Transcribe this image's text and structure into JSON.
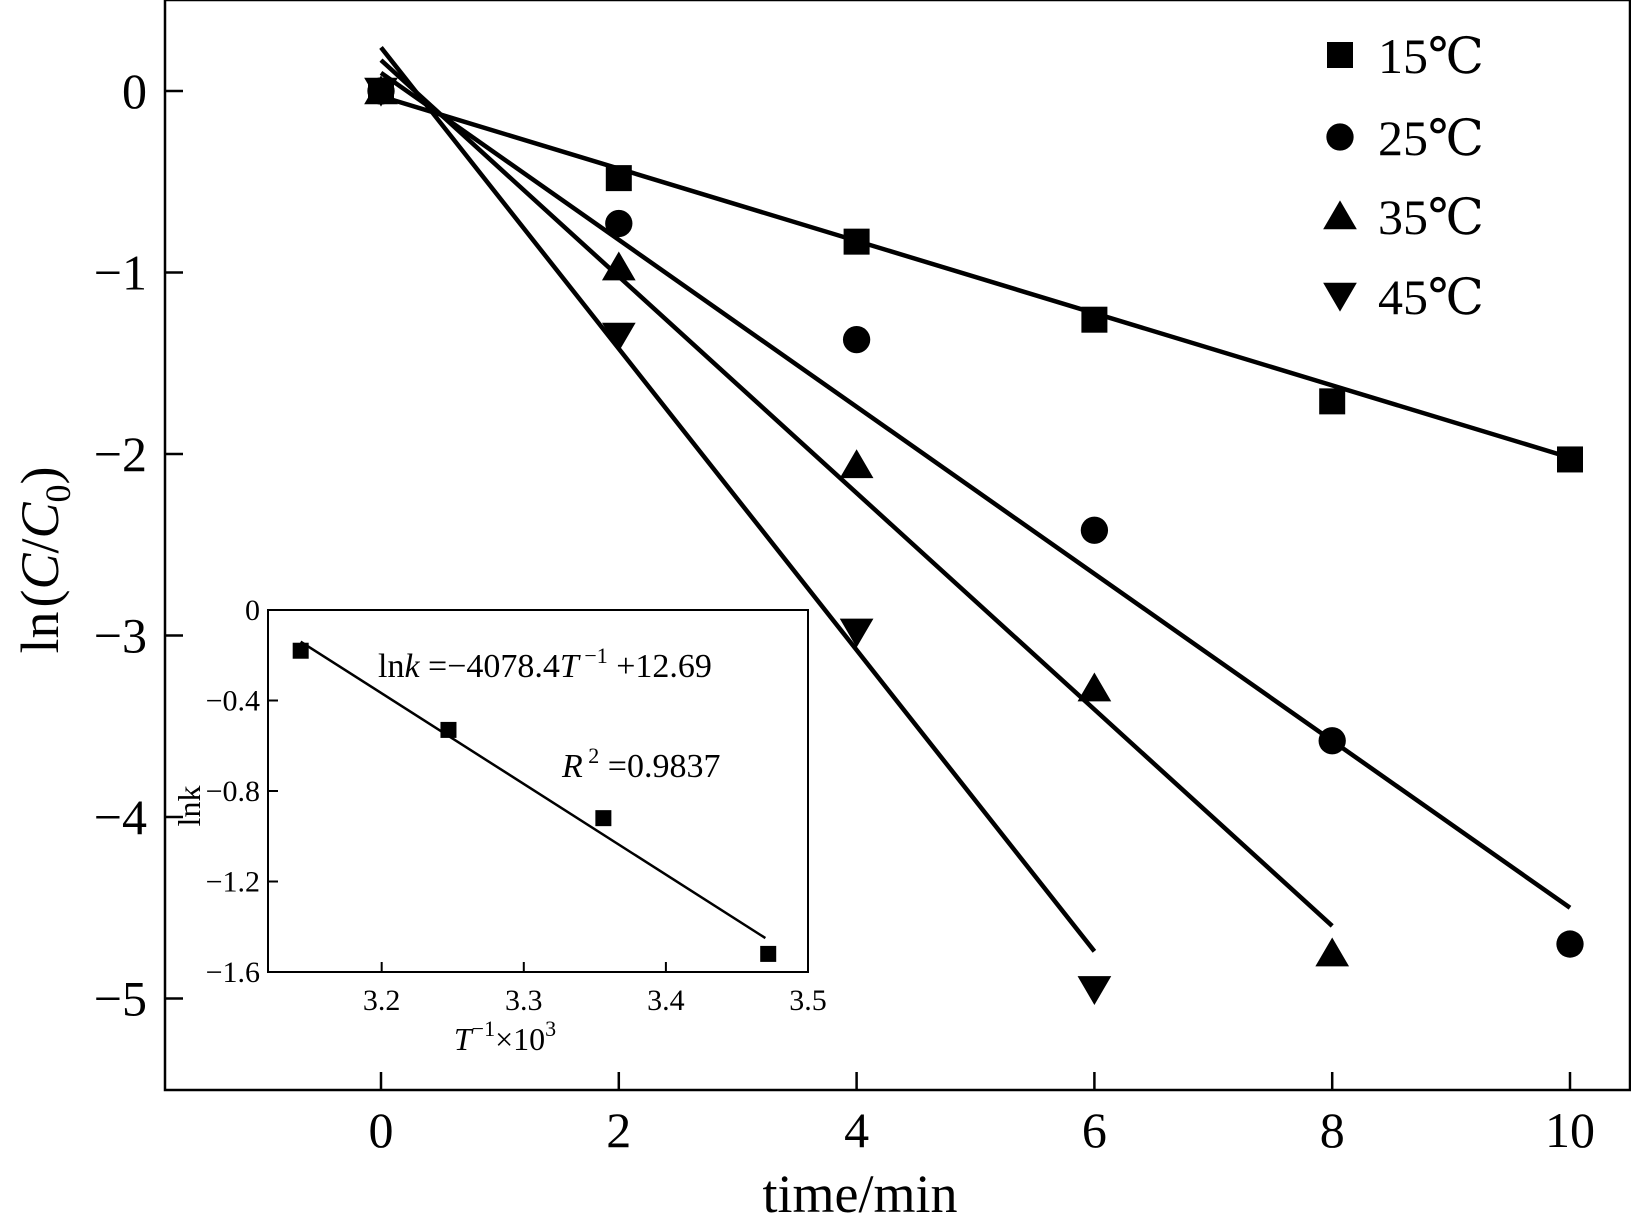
{
  "chart_data": [
    {
      "type": "scatter",
      "xlabel": "time/min",
      "ylabel": "ln(C/C0)",
      "ylabel_parts": {
        "prefix": "ln",
        "open": "(",
        "c": "C",
        "slash": "/",
        "c0": "C",
        "sub": "0",
        "close": ")"
      },
      "xlim": [
        -1.8,
        10.5
      ],
      "ylim": [
        -5.5,
        0.5
      ],
      "xticks": [
        0,
        2,
        4,
        6,
        8,
        10
      ],
      "yticks": [
        0,
        -1,
        -2,
        -3,
        -4,
        -5
      ],
      "xtick_labels": [
        "0",
        "2",
        "4",
        "6",
        "8",
        "10"
      ],
      "ytick_labels": [
        "0",
        "−1",
        "−2",
        "−3",
        "−4",
        "−5"
      ],
      "legend_position": "top-right",
      "grid": false,
      "series": [
        {
          "name": "15℃",
          "marker": "square",
          "x": [
            0,
            2,
            4,
            6,
            8,
            10
          ],
          "y": [
            0,
            -0.48,
            -0.83,
            -1.26,
            -1.71,
            -2.03
          ],
          "fit": [
            [
              0,
              -0.03
            ],
            [
              10,
              -2.02
            ]
          ]
        },
        {
          "name": "25℃",
          "marker": "circle",
          "x": [
            0,
            2,
            4,
            6,
            8,
            10
          ],
          "y": [
            0,
            -0.73,
            -1.37,
            -2.42,
            -3.58,
            -4.7
          ],
          "fit": [
            [
              0,
              0.1
            ],
            [
              10,
              -4.5
            ]
          ]
        },
        {
          "name": "35℃",
          "marker": "triangle-up",
          "x": [
            0,
            2,
            4,
            6,
            8
          ],
          "y": [
            0,
            -0.97,
            -2.06,
            -3.29,
            -4.75
          ],
          "fit": [
            [
              0,
              0.17
            ],
            [
              8,
              -4.6
            ]
          ]
        },
        {
          "name": "45℃",
          "marker": "triangle-down",
          "x": [
            0,
            2,
            4,
            6
          ],
          "y": [
            0,
            -1.35,
            -2.98,
            -4.95
          ],
          "fit": [
            [
              0,
              0.24
            ],
            [
              6,
              -4.74
            ]
          ]
        }
      ]
    },
    {
      "type": "scatter",
      "xlabel_parts": {
        "t": "T",
        "sup": "−1",
        "rest": "×10",
        "sup2": "3"
      },
      "ylabel": "lnk",
      "xlim": [
        3.12,
        3.5
      ],
      "ylim": [
        -1.6,
        0
      ],
      "xticks": [
        3.2,
        3.3,
        3.4,
        3.5
      ],
      "yticks": [
        0,
        -0.4,
        -0.8,
        -1.2,
        -1.6
      ],
      "xtick_labels": [
        "3.2",
        "3.3",
        "3.4",
        "3.5"
      ],
      "ytick_labels": [
        "0",
        "−0.4",
        "−0.8",
        "−1.2",
        "−1.6"
      ],
      "series": [
        {
          "marker": "square",
          "x": [
            3.143,
            3.247,
            3.356,
            3.472
          ],
          "y": [
            -0.18,
            -0.53,
            -0.92,
            -1.52
          ],
          "fit": [
            [
              3.143,
              -0.14
            ],
            [
              3.47,
              -1.45
            ]
          ]
        }
      ],
      "annotations": {
        "equation": {
          "ln": "ln",
          "k": "k",
          "eq": " =−4078.4",
          "T": "T",
          "sup": " −1",
          "rest": " +12.69"
        },
        "r2": {
          "R": "R",
          "sup": " 2",
          "rest": " =0.9837"
        }
      }
    }
  ]
}
